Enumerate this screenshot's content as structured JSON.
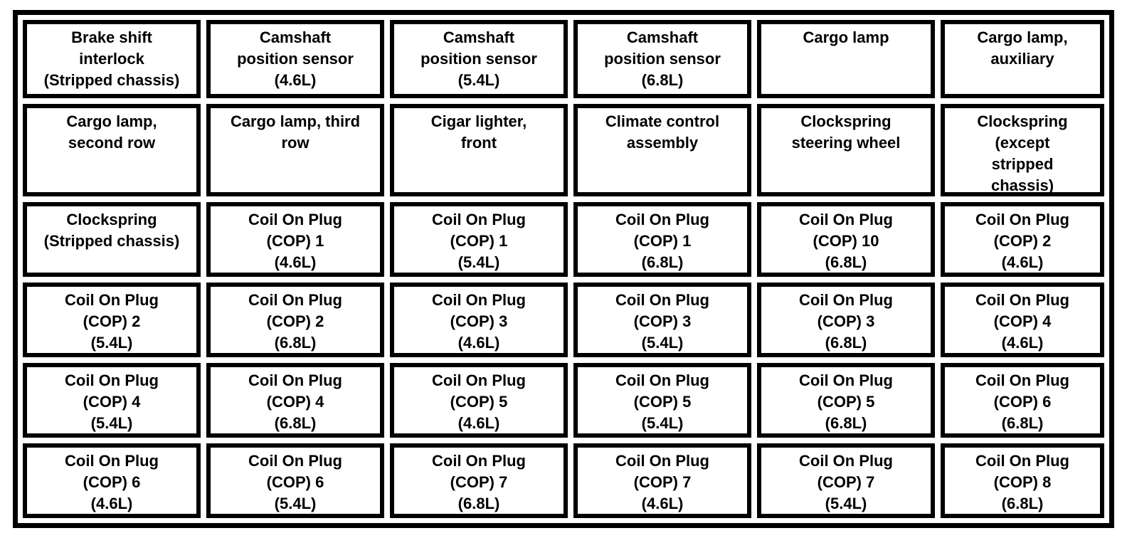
{
  "colors": {
    "border": "#000000",
    "background": "#ffffff",
    "text": "#000000"
  },
  "grid": {
    "columns": 6,
    "row_count": 6,
    "rows": [
      [
        "Brake shift\ninterlock\n(Stripped chassis)",
        "Camshaft\nposition sensor\n(4.6L)",
        "Camshaft\nposition sensor\n(5.4L)",
        "Camshaft\nposition sensor\n(6.8L)",
        "Cargo lamp",
        "Cargo lamp,\nauxiliary"
      ],
      [
        "Cargo lamp,\nsecond row",
        "Cargo lamp, third\nrow",
        "Cigar lighter,\nfront",
        "Climate control\nassembly",
        "Clockspring\nsteering wheel",
        "Clockspring\n(except\nstripped\nchassis)"
      ],
      [
        "Clockspring\n(Stripped chassis)",
        "Coil On Plug\n(COP) 1\n(4.6L)",
        "Coil On Plug\n(COP) 1\n(5.4L)",
        "Coil On Plug\n(COP) 1\n(6.8L)",
        "Coil On Plug\n(COP) 10\n(6.8L)",
        "Coil On Plug\n(COP) 2\n(4.6L)"
      ],
      [
        "Coil On Plug\n(COP) 2\n(5.4L)",
        "Coil On Plug\n(COP) 2\n(6.8L)",
        "Coil On Plug\n(COP) 3\n(4.6L)",
        "Coil On Plug\n(COP) 3\n(5.4L)",
        "Coil On Plug\n(COP) 3\n(6.8L)",
        "Coil On Plug\n(COP) 4\n(4.6L)"
      ],
      [
        "Coil On Plug\n(COP) 4\n(5.4L)",
        "Coil On Plug\n(COP) 4\n(6.8L)",
        "Coil On Plug\n(COP) 5\n(4.6L)",
        "Coil On Plug\n(COP) 5\n(5.4L)",
        "Coil On Plug\n(COP) 5\n(6.8L)",
        "Coil On Plug\n(COP) 6\n(6.8L)"
      ],
      [
        "Coil On Plug\n(COP) 6\n(4.6L)",
        "Coil On Plug\n(COP) 6\n(5.4L)",
        "Coil On Plug\n(COP) 7\n(6.8L)",
        "Coil On Plug\n(COP) 7\n(4.6L)",
        "Coil On Plug\n(COP) 7\n(5.4L)",
        "Coil On Plug\n(COP) 8\n(6.8L)"
      ]
    ]
  }
}
